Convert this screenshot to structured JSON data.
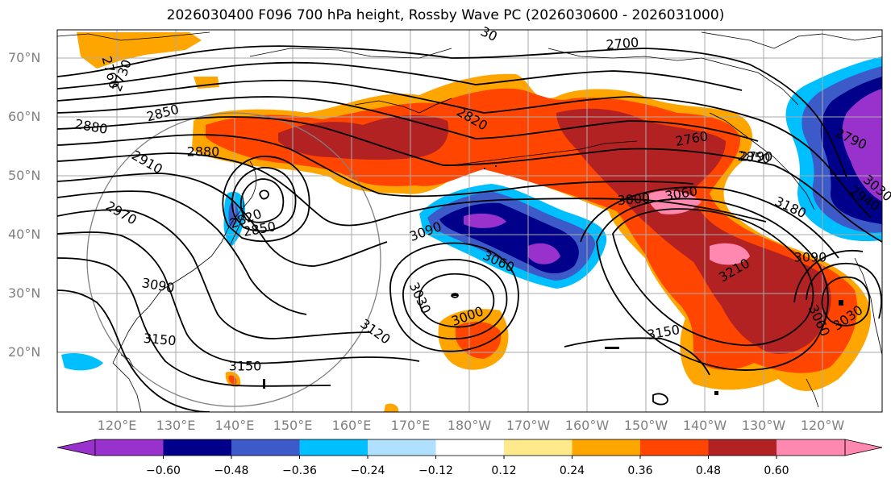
{
  "title": "2026030400 F096 700 hPa height, Rossby Wave PC (2026030600 - 2026031000)",
  "lat_labels": [
    "70°N",
    "60°N",
    "50°N",
    "40°N",
    "30°N",
    "20°N"
  ],
  "lon_labels": [
    "120°E",
    "130°E",
    "140°E",
    "150°E",
    "160°E",
    "170°E",
    "180°W",
    "170°W",
    "160°W",
    "150°W",
    "140°W",
    "130°W",
    "120°W"
  ],
  "contour_labels": [
    "2700",
    "2760",
    "2790",
    "2790",
    "2820",
    "2820",
    "2850",
    "2850",
    "2850",
    "2880",
    "2880",
    "2910",
    "2940",
    "2970",
    "3000",
    "3000",
    "3030",
    "3030",
    "3030",
    "3060",
    "3060",
    "3060",
    "3090",
    "3090",
    "3090",
    "3120",
    "3150",
    "3150",
    "3150",
    "3180",
    "3210",
    "2760",
    "2730",
    "30"
  ],
  "colorbar": {
    "ticks": [
      "−0.60",
      "−0.48",
      "−0.36",
      "−0.24",
      "−0.12",
      "0.12",
      "0.24",
      "0.36",
      "0.48",
      "0.60"
    ],
    "colors": [
      "#9932cc",
      "#00008b",
      "#3c5ac8",
      "#00bfff",
      "#b0e0ff",
      "#ffffff",
      "#ffe98a",
      "#ffa500",
      "#ff4500",
      "#b22222",
      "#ff88b0",
      "#ff88b0"
    ]
  }
}
